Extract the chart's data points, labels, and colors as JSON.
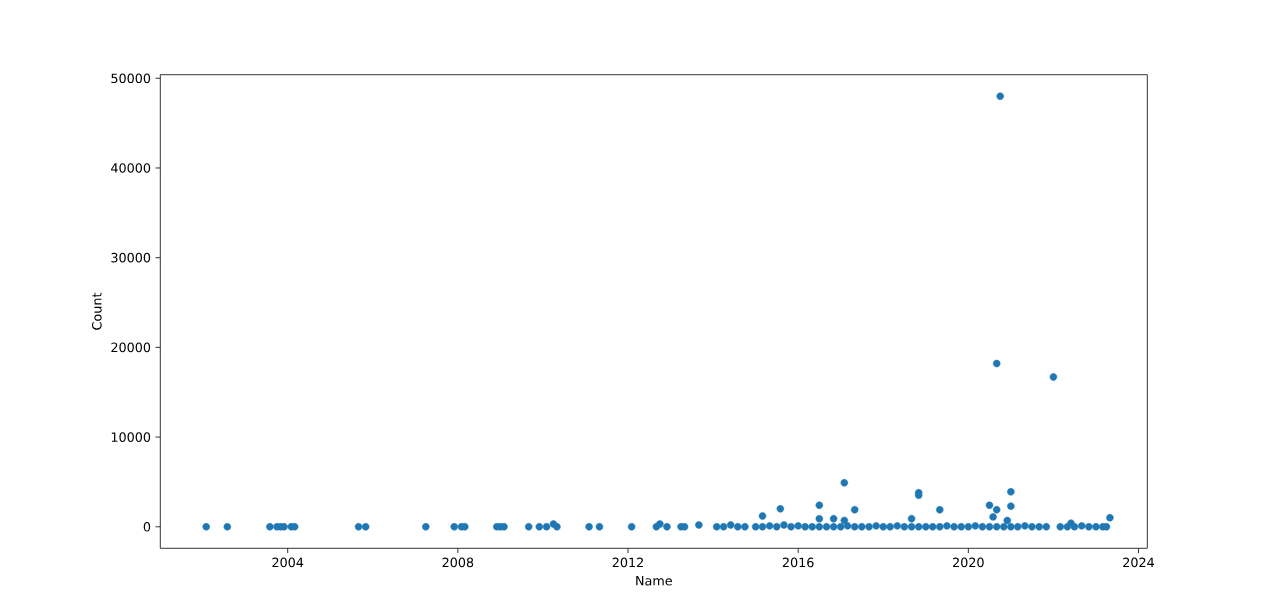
{
  "chart_data": {
    "type": "scatter",
    "xlabel": "Name",
    "ylabel": "Count",
    "color": "#1f77b4",
    "marker": "circle",
    "xlim": [
      "2001-01-03",
      "2024-03-17"
    ],
    "xticks": [
      "2004",
      "2008",
      "2012",
      "2016",
      "2020",
      "2024"
    ],
    "ylim": [
      -2400,
      50400
    ],
    "yticks": [
      0,
      10000,
      20000,
      30000,
      40000,
      50000
    ],
    "x": [
      "2002-02",
      "2002-08",
      "2003-08",
      "2003-10",
      "2003-11",
      "2003-12",
      "2004-02",
      "2004-03",
      "2005-09",
      "2005-11",
      "2007-04",
      "2007-12",
      "2008-02",
      "2008-03",
      "2008-12",
      "2009-01",
      "2009-02",
      "2009-09",
      "2009-12",
      "2010-02",
      "2010-04",
      "2010-05",
      "2011-02",
      "2011-05",
      "2012-02",
      "2012-09",
      "2012-10",
      "2012-12",
      "2013-04",
      "2013-05",
      "2013-09",
      "2014-02",
      "2014-04",
      "2014-06",
      "2014-08",
      "2014-10",
      "2015-01",
      "2015-03",
      "2015-03",
      "2015-05",
      "2015-07",
      "2015-08",
      "2015-09",
      "2015-11",
      "2016-01",
      "2016-03",
      "2016-05",
      "2016-07",
      "2016-07",
      "2016-07",
      "2016-09",
      "2016-11",
      "2016-11",
      "2017-01",
      "2017-02",
      "2017-02",
      "2017-03",
      "2017-05",
      "2017-05",
      "2017-07",
      "2017-09",
      "2017-11",
      "2018-01",
      "2018-03",
      "2018-05",
      "2018-07",
      "2018-09",
      "2018-09",
      "2018-11",
      "2018-11",
      "2018-11",
      "2019-01",
      "2019-03",
      "2019-05",
      "2019-05",
      "2019-07",
      "2019-09",
      "2019-11",
      "2020-01",
      "2020-03",
      "2020-05",
      "2020-07",
      "2020-07",
      "2020-08",
      "2020-09",
      "2020-09",
      "2020-09",
      "2020-10",
      "2020-11",
      "2020-12",
      "2021-01",
      "2021-01",
      "2021-01",
      "2021-03",
      "2021-05",
      "2021-07",
      "2021-09",
      "2021-11",
      "2022-01",
      "2022-03",
      "2022-05",
      "2022-06",
      "2022-07",
      "2022-09",
      "2022-11",
      "2023-01",
      "2023-03",
      "2023-04",
      "2023-05"
    ],
    "values": [
      0,
      0,
      0,
      0,
      0,
      0,
      0,
      0,
      0,
      0,
      0,
      0,
      0,
      0,
      0,
      0,
      0,
      0,
      0,
      0,
      300,
      0,
      0,
      0,
      0,
      0,
      300,
      0,
      0,
      0,
      200,
      0,
      0,
      200,
      0,
      0,
      0,
      1200,
      0,
      100,
      0,
      2000,
      200,
      0,
      100,
      0,
      0,
      2400,
      900,
      0,
      0,
      900,
      0,
      0,
      4900,
      700,
      100,
      1900,
      0,
      0,
      0,
      100,
      0,
      0,
      100,
      0,
      900,
      0,
      3800,
      3500,
      0,
      0,
      0,
      1900,
      0,
      100,
      0,
      0,
      0,
      100,
      0,
      2400,
      0,
      1100,
      1900,
      18200,
      0,
      48000,
      0,
      700,
      3900,
      2300,
      0,
      0,
      100,
      0,
      0,
      0,
      16700,
      0,
      0,
      400,
      0,
      100,
      0,
      0,
      0,
      0,
      1000
    ]
  }
}
